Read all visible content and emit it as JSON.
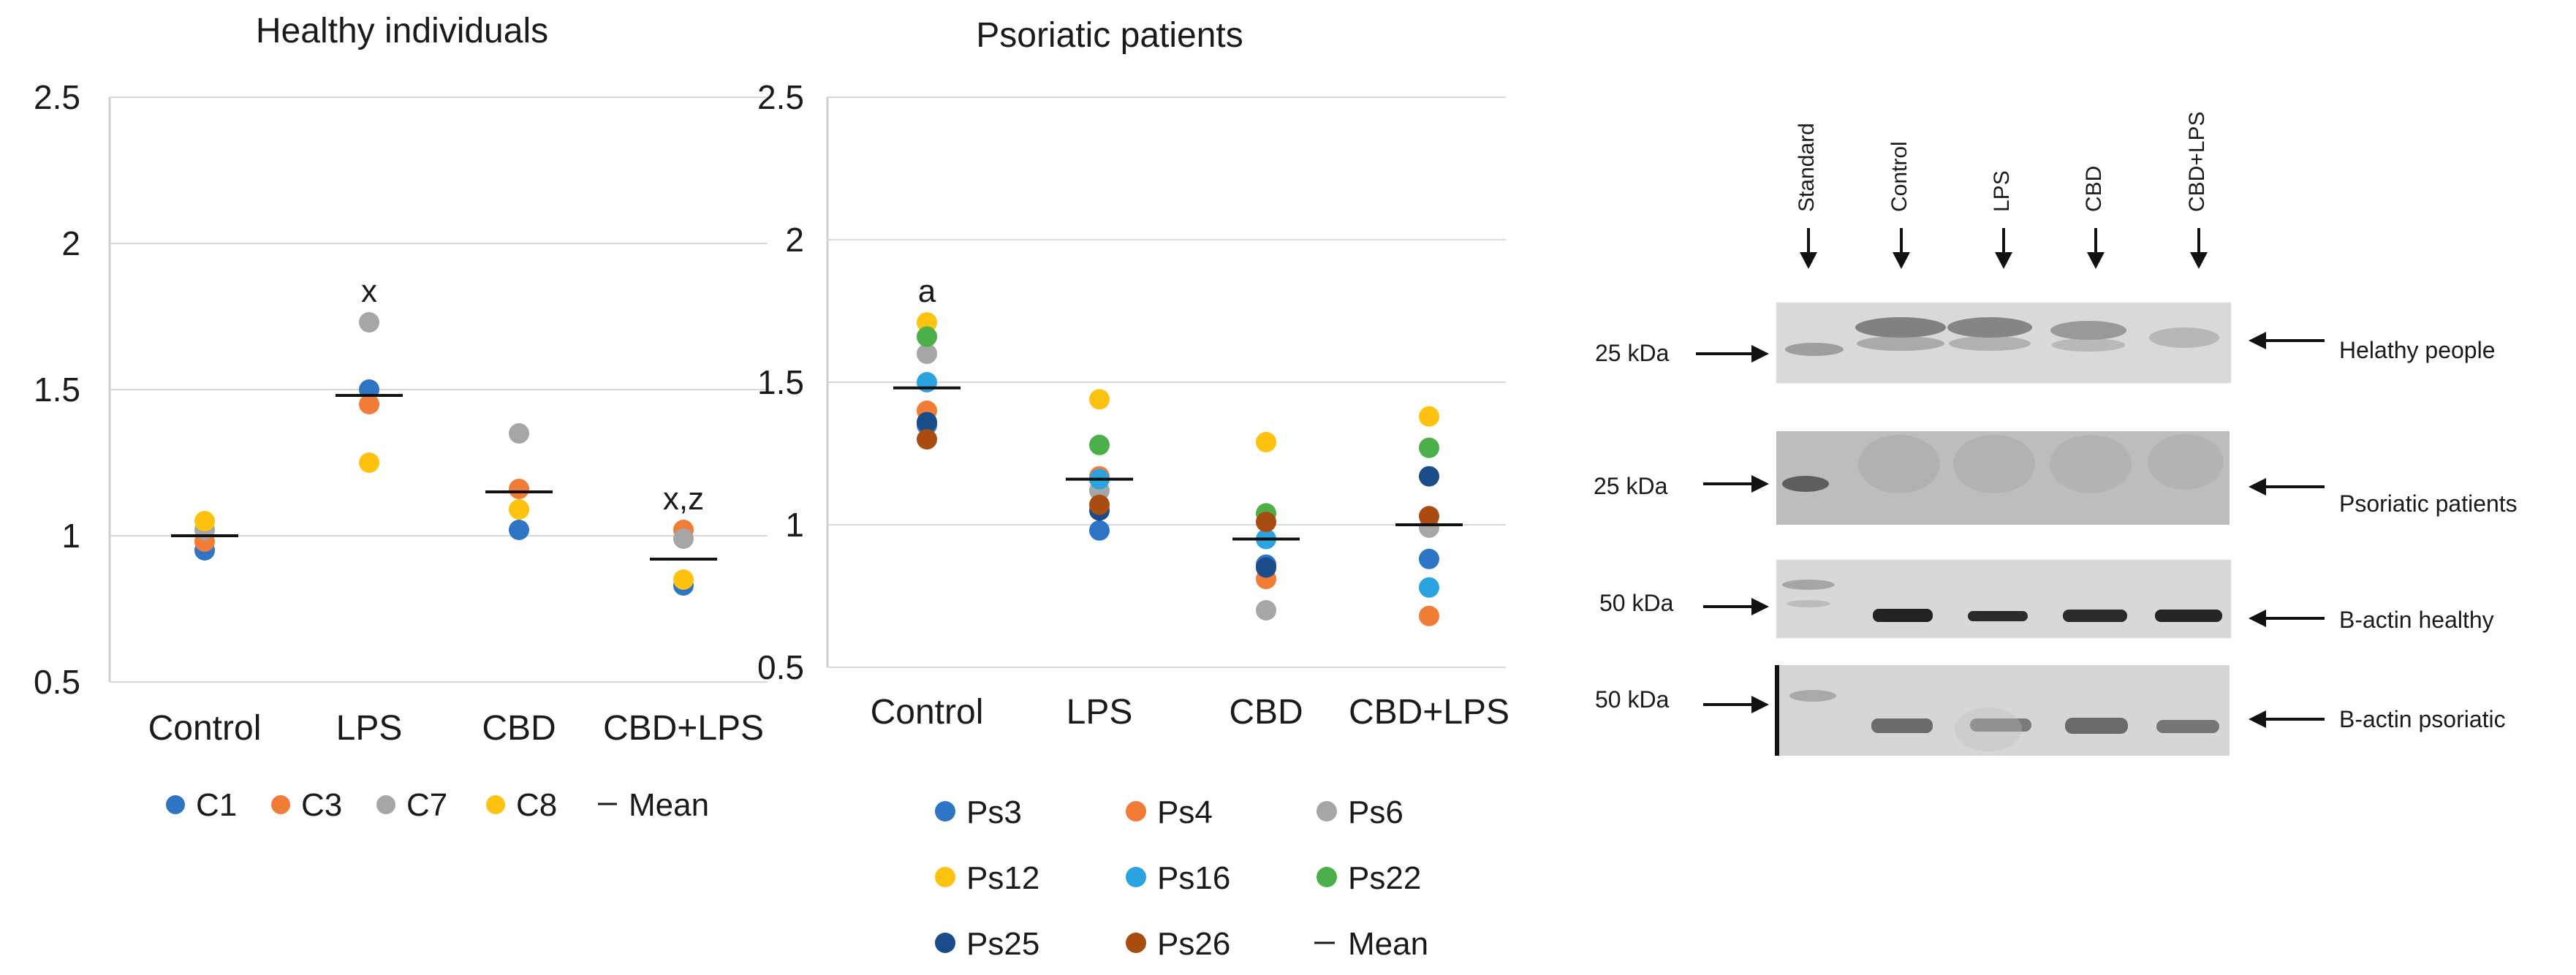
{
  "chart_data": [
    {
      "type": "scatter",
      "title": "Healthy individuals",
      "categories": [
        "Control",
        "LPS",
        "CBD",
        "CBD+LPS"
      ],
      "ylim": [
        0.5,
        2.5
      ],
      "yticks": [
        0.5,
        1,
        1.5,
        2,
        2.5
      ],
      "ytick_labels": [
        "0.5",
        "1",
        "1.5",
        "2",
        "2.5"
      ],
      "grid": true,
      "legend_position": "bottom",
      "series": [
        {
          "name": "C1",
          "color": "#2E75C6",
          "values": [
            0.95,
            1.5,
            1.02,
            0.83
          ]
        },
        {
          "name": "C3",
          "color": "#F07C36",
          "values": [
            0.98,
            1.45,
            1.16,
            1.02
          ]
        },
        {
          "name": "C7",
          "color": "#A6A6A6",
          "values": [
            1.02,
            1.73,
            1.35,
            0.99
          ]
        },
        {
          "name": "C8",
          "color": "#FFC20E",
          "values": [
            1.05,
            1.25,
            1.09,
            0.85
          ]
        }
      ],
      "mean": {
        "name": "Mean",
        "values": [
          1.0,
          1.48,
          1.15,
          0.92
        ]
      },
      "annotations": [
        {
          "category": "LPS",
          "text": "x"
        },
        {
          "category": "CBD+LPS",
          "text": "x,z"
        }
      ]
    },
    {
      "type": "scatter",
      "title": "Psoriatic patients",
      "categories": [
        "Control",
        "LPS",
        "CBD",
        "CBD+LPS"
      ],
      "ylim": [
        0.5,
        2.5
      ],
      "yticks": [
        0.5,
        1,
        1.5,
        2,
        2.5
      ],
      "ytick_labels": [
        "0.5",
        "1",
        "1.5",
        "2",
        "2.5"
      ],
      "grid": true,
      "legend_position": "bottom",
      "series": [
        {
          "name": "Ps3",
          "color": "#2E75C6",
          "values": [
            1.35,
            0.98,
            0.86,
            0.88
          ]
        },
        {
          "name": "Ps4",
          "color": "#F07C36",
          "values": [
            1.4,
            1.17,
            0.81,
            0.68
          ]
        },
        {
          "name": "Ps6",
          "color": "#A6A6A6",
          "values": [
            1.6,
            1.12,
            0.7,
            0.99
          ]
        },
        {
          "name": "Ps12",
          "color": "#FFC20E",
          "values": [
            1.71,
            1.44,
            1.29,
            1.38
          ]
        },
        {
          "name": "Ps16",
          "color": "#2BA3E0",
          "values": [
            1.5,
            1.16,
            0.95,
            0.78
          ]
        },
        {
          "name": "Ps22",
          "color": "#4CB04A",
          "values": [
            1.66,
            1.28,
            1.04,
            1.27
          ]
        },
        {
          "name": "Ps25",
          "color": "#1B4C8A",
          "values": [
            1.36,
            1.05,
            0.85,
            1.17
          ]
        },
        {
          "name": "Ps26",
          "color": "#A94C12",
          "values": [
            1.3,
            1.07,
            1.01,
            1.03
          ]
        }
      ],
      "mean": {
        "name": "Mean",
        "values": [
          1.48,
          1.16,
          0.95,
          1.0
        ]
      },
      "annotations": [
        {
          "category": "Control",
          "text": "a"
        }
      ]
    }
  ],
  "blot": {
    "lanes": [
      "Standard",
      "Control",
      "LPS",
      "CBD",
      "CBD+LPS"
    ],
    "rows": [
      {
        "marker": "25 kDa",
        "label": "Helathy people"
      },
      {
        "marker": "25 kDa",
        "label": "Psoriatic patients"
      },
      {
        "marker": "50 kDa",
        "label": "B-actin healthy"
      },
      {
        "marker": "50 kDa",
        "label": "B-actin psoriatic"
      }
    ]
  }
}
